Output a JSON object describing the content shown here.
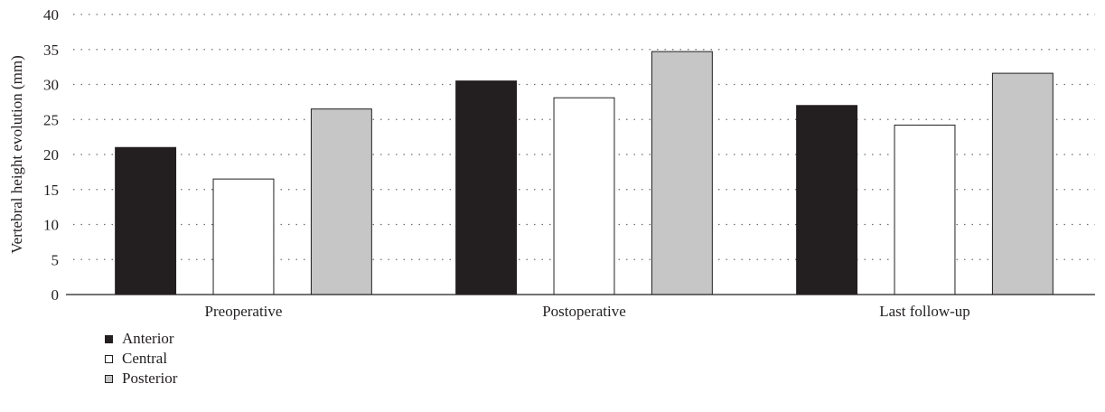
{
  "chart_data": {
    "type": "bar",
    "title": "",
    "xlabel": "",
    "ylabel": "Vertebral height evolution (mm)",
    "ylim": [
      0,
      40
    ],
    "yticks": [
      0,
      5,
      10,
      15,
      20,
      25,
      30,
      35,
      40
    ],
    "grid": true,
    "legend_position": "bottom-left",
    "categories": [
      "Preoperative",
      "Postoperative",
      "Last follow-up"
    ],
    "series": [
      {
        "name": "Anterior",
        "values": [
          21.0,
          30.5,
          27.0
        ],
        "color": "#231f20"
      },
      {
        "name": "Central",
        "values": [
          16.5,
          28.1,
          24.2
        ],
        "color": "#ffffff"
      },
      {
        "name": "Posterior",
        "values": [
          26.5,
          34.7,
          31.6
        ],
        "color": "#c6c6c6"
      }
    ]
  }
}
